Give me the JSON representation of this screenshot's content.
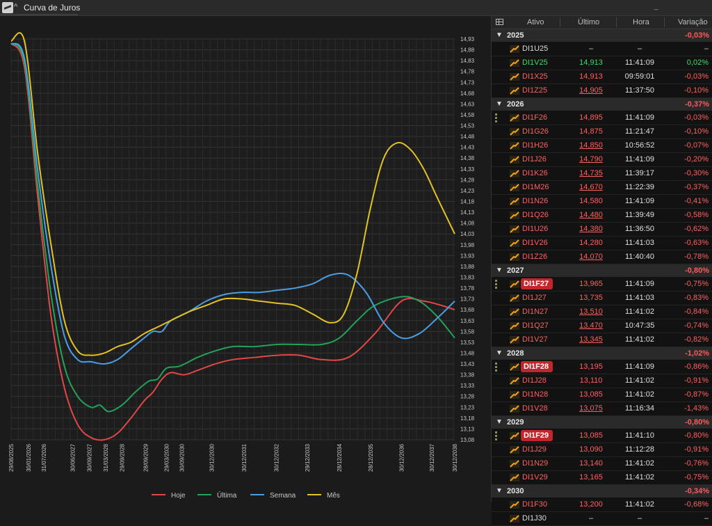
{
  "window": {
    "title": "Curva de Juros"
  },
  "table": {
    "headers": {
      "ativo": "Ativo",
      "ultimo": "Último",
      "hora": "Hora",
      "variacao": "Variação"
    },
    "groups": [
      {
        "name": "2025",
        "var": "-0,03%",
        "rows": [
          {
            "sym": "DI1U25",
            "last": "–",
            "hora": "–",
            "var": "–",
            "tone": "neutral"
          },
          {
            "sym": "DI1V25",
            "last": "14,913",
            "hora": "11:41:09",
            "var": "0,02%",
            "tone": "up"
          },
          {
            "sym": "DI1X25",
            "last": "14,913",
            "hora": "09:59:01",
            "var": "-0,03%",
            "tone": "down"
          },
          {
            "sym": "DI1Z25",
            "last": "14,905",
            "hora": "11:37:50",
            "var": "-0,10%",
            "tone": "down",
            "u": true
          }
        ]
      },
      {
        "name": "2026",
        "var": "-0,37%",
        "rows": [
          {
            "sym": "DI1F26",
            "last": "14,895",
            "hora": "11:41:09",
            "var": "-0,03%",
            "tone": "down",
            "drag": true
          },
          {
            "sym": "DI1G26",
            "last": "14,875",
            "hora": "11:21:47",
            "var": "-0,10%",
            "tone": "down"
          },
          {
            "sym": "DI1H26",
            "last": "14,850",
            "hora": "10:56:52",
            "var": "-0,07%",
            "tone": "down",
            "u": true
          },
          {
            "sym": "DI1J26",
            "last": "14,790",
            "hora": "11:41:09",
            "var": "-0,20%",
            "tone": "down",
            "u": true
          },
          {
            "sym": "DI1K26",
            "last": "14,735",
            "hora": "11:39:17",
            "var": "-0,30%",
            "tone": "down",
            "u": true
          },
          {
            "sym": "DI1M26",
            "last": "14,670",
            "hora": "11:22:39",
            "var": "-0,37%",
            "tone": "down",
            "u": true
          },
          {
            "sym": "DI1N26",
            "last": "14,580",
            "hora": "11:41:09",
            "var": "-0,41%",
            "tone": "down"
          },
          {
            "sym": "DI1Q26",
            "last": "14,480",
            "hora": "11:39:49",
            "var": "-0,58%",
            "tone": "down",
            "u": true
          },
          {
            "sym": "DI1U26",
            "last": "14,380",
            "hora": "11:36:50",
            "var": "-0,62%",
            "tone": "down",
            "u": true
          },
          {
            "sym": "DI1V26",
            "last": "14,280",
            "hora": "11:41:03",
            "var": "-0,63%",
            "tone": "down"
          },
          {
            "sym": "DI1Z26",
            "last": "14,070",
            "hora": "11:40:40",
            "var": "-0,78%",
            "tone": "down",
            "u": true
          }
        ]
      },
      {
        "name": "2027",
        "var": "-0,80%",
        "rows": [
          {
            "sym": "DI1F27",
            "last": "13,965",
            "hora": "11:41:09",
            "var": "-0,75%",
            "tone": "down",
            "badge": true,
            "drag": true
          },
          {
            "sym": "DI1J27",
            "last": "13,735",
            "hora": "11:41:03",
            "var": "-0,83%",
            "tone": "down"
          },
          {
            "sym": "DI1N27",
            "last": "13,510",
            "hora": "11:41:02",
            "var": "-0,84%",
            "tone": "down",
            "u": true
          },
          {
            "sym": "DI1Q27",
            "last": "13,470",
            "hora": "10:47:35",
            "var": "-0,74%",
            "tone": "down",
            "u": true
          },
          {
            "sym": "DI1V27",
            "last": "13,345",
            "hora": "11:41:02",
            "var": "-0,82%",
            "tone": "down",
            "u": true
          }
        ]
      },
      {
        "name": "2028",
        "var": "-1,02%",
        "rows": [
          {
            "sym": "DI1F28",
            "last": "13,195",
            "hora": "11:41:09",
            "var": "-0,86%",
            "tone": "down",
            "badge": true,
            "drag": true
          },
          {
            "sym": "DI1J28",
            "last": "13,110",
            "hora": "11:41:02",
            "var": "-0,91%",
            "tone": "down"
          },
          {
            "sym": "DI1N28",
            "last": "13,085",
            "hora": "11:41:02",
            "var": "-0,87%",
            "tone": "down"
          },
          {
            "sym": "DI1V28",
            "last": "13,075",
            "hora": "11:16:34",
            "var": "-1,43%",
            "tone": "down",
            "u": true
          }
        ]
      },
      {
        "name": "2029",
        "var": "-0,80%",
        "rows": [
          {
            "sym": "DI1F29",
            "last": "13,085",
            "hora": "11:41:10",
            "var": "-0,80%",
            "tone": "down",
            "badge": true,
            "drag": true
          },
          {
            "sym": "DI1J29",
            "last": "13,090",
            "hora": "11:12:28",
            "var": "-0,91%",
            "tone": "down"
          },
          {
            "sym": "DI1N29",
            "last": "13,140",
            "hora": "11:41:02",
            "var": "-0,76%",
            "tone": "down"
          },
          {
            "sym": "DI1V29",
            "last": "13,165",
            "hora": "11:41:02",
            "var": "-0,75%",
            "tone": "down"
          }
        ]
      },
      {
        "name": "2030",
        "var": "-0,34%",
        "rows": [
          {
            "sym": "DI1F30",
            "last": "13,200",
            "hora": "11:41:02",
            "var": "-0,68%",
            "tone": "down"
          },
          {
            "sym": "DI1J30",
            "last": "–",
            "hora": "–",
            "var": "–",
            "tone": "neutral"
          }
        ]
      }
    ]
  },
  "chart_data": {
    "type": "line",
    "ylim": [
      13.08,
      14.93
    ],
    "yticks": [
      "14,93",
      "14,88",
      "14,83",
      "14,78",
      "14,73",
      "14,68",
      "14,63",
      "14,58",
      "14,53",
      "14,48",
      "14,43",
      "14,38",
      "14,33",
      "14,28",
      "14,23",
      "14,18",
      "14,13",
      "14,08",
      "14,03",
      "13,98",
      "13,93",
      "13,88",
      "13,83",
      "13,78",
      "13,73",
      "13,68",
      "13,63",
      "13,58",
      "13,53",
      "13,48",
      "13,43",
      "13,38",
      "13,33",
      "13,28",
      "13,23",
      "13,18",
      "13,13",
      "13,08"
    ],
    "xticks": [
      "29/08/2025",
      "30/01/2026",
      "31/07/2026",
      "30/06/2027",
      "30/09/2027",
      "31/03/2028",
      "29/09/2028",
      "28/09/2029",
      "29/03/2030",
      "30/09/2030",
      "30/12/2030",
      "30/12/2031",
      "30/12/2032",
      "29/12/2033",
      "28/12/2034",
      "28/12/2035",
      "30/12/2036",
      "30/12/2037",
      "30/12/2038"
    ],
    "xtick_fracs": [
      0.0,
      0.039,
      0.074,
      0.139,
      0.176,
      0.213,
      0.25,
      0.303,
      0.35,
      0.385,
      0.452,
      0.525,
      0.598,
      0.668,
      0.74,
      0.81,
      0.88,
      0.948,
      1.0
    ],
    "series": [
      {
        "name": "Hoje",
        "color": "#e04848",
        "points": [
          [
            0,
            14.91
          ],
          [
            0.03,
            14.8
          ],
          [
            0.06,
            14.2
          ],
          [
            0.09,
            13.65
          ],
          [
            0.12,
            13.32
          ],
          [
            0.15,
            13.15
          ],
          [
            0.18,
            13.09
          ],
          [
            0.21,
            13.08
          ],
          [
            0.24,
            13.11
          ],
          [
            0.27,
            13.18
          ],
          [
            0.3,
            13.26
          ],
          [
            0.32,
            13.3
          ],
          [
            0.34,
            13.36
          ],
          [
            0.36,
            13.39
          ],
          [
            0.39,
            13.38
          ],
          [
            0.42,
            13.4
          ],
          [
            0.46,
            13.43
          ],
          [
            0.5,
            13.45
          ],
          [
            0.55,
            13.46
          ],
          [
            0.6,
            13.47
          ],
          [
            0.65,
            13.47
          ],
          [
            0.7,
            13.45
          ],
          [
            0.76,
            13.46
          ],
          [
            0.82,
            13.57
          ],
          [
            0.88,
            13.72
          ],
          [
            0.93,
            13.72
          ],
          [
            0.97,
            13.7
          ],
          [
            1.0,
            13.68
          ]
        ]
      },
      {
        "name": "Última",
        "color": "#23a25a",
        "points": [
          [
            0,
            14.91
          ],
          [
            0.03,
            14.82
          ],
          [
            0.06,
            14.25
          ],
          [
            0.09,
            13.75
          ],
          [
            0.12,
            13.42
          ],
          [
            0.15,
            13.28
          ],
          [
            0.18,
            13.23
          ],
          [
            0.2,
            13.24
          ],
          [
            0.22,
            13.21
          ],
          [
            0.25,
            13.24
          ],
          [
            0.28,
            13.3
          ],
          [
            0.31,
            13.35
          ],
          [
            0.33,
            13.36
          ],
          [
            0.35,
            13.41
          ],
          [
            0.38,
            13.42
          ],
          [
            0.42,
            13.46
          ],
          [
            0.46,
            13.49
          ],
          [
            0.5,
            13.51
          ],
          [
            0.55,
            13.51
          ],
          [
            0.6,
            13.52
          ],
          [
            0.65,
            13.52
          ],
          [
            0.7,
            13.52
          ],
          [
            0.74,
            13.55
          ],
          [
            0.78,
            13.63
          ],
          [
            0.82,
            13.7
          ],
          [
            0.88,
            13.74
          ],
          [
            0.92,
            13.72
          ],
          [
            0.96,
            13.65
          ],
          [
            1.0,
            13.55
          ]
        ]
      },
      {
        "name": "Semana",
        "color": "#4a9ee6",
        "points": [
          [
            0,
            14.91
          ],
          [
            0.03,
            14.84
          ],
          [
            0.06,
            14.32
          ],
          [
            0.09,
            13.88
          ],
          [
            0.12,
            13.56
          ],
          [
            0.15,
            13.45
          ],
          [
            0.18,
            13.44
          ],
          [
            0.21,
            13.43
          ],
          [
            0.24,
            13.45
          ],
          [
            0.27,
            13.5
          ],
          [
            0.3,
            13.55
          ],
          [
            0.32,
            13.58
          ],
          [
            0.34,
            13.58
          ],
          [
            0.36,
            13.63
          ],
          [
            0.4,
            13.67
          ],
          [
            0.44,
            13.72
          ],
          [
            0.48,
            13.75
          ],
          [
            0.52,
            13.76
          ],
          [
            0.56,
            13.76
          ],
          [
            0.6,
            13.77
          ],
          [
            0.64,
            13.78
          ],
          [
            0.68,
            13.8
          ],
          [
            0.72,
            13.84
          ],
          [
            0.76,
            13.84
          ],
          [
            0.8,
            13.76
          ],
          [
            0.84,
            13.62
          ],
          [
            0.88,
            13.55
          ],
          [
            0.92,
            13.57
          ],
          [
            0.96,
            13.64
          ],
          [
            1.0,
            13.72
          ]
        ]
      },
      {
        "name": "Mês",
        "color": "#e3c324",
        "points": [
          [
            0,
            14.92
          ],
          [
            0.03,
            14.92
          ],
          [
            0.06,
            14.4
          ],
          [
            0.09,
            13.98
          ],
          [
            0.12,
            13.63
          ],
          [
            0.15,
            13.49
          ],
          [
            0.18,
            13.47
          ],
          [
            0.21,
            13.48
          ],
          [
            0.24,
            13.51
          ],
          [
            0.27,
            13.53
          ],
          [
            0.3,
            13.57
          ],
          [
            0.33,
            13.6
          ],
          [
            0.36,
            13.63
          ],
          [
            0.4,
            13.67
          ],
          [
            0.44,
            13.7
          ],
          [
            0.48,
            13.73
          ],
          [
            0.52,
            13.73
          ],
          [
            0.56,
            13.72
          ],
          [
            0.6,
            13.71
          ],
          [
            0.64,
            13.7
          ],
          [
            0.68,
            13.66
          ],
          [
            0.72,
            13.62
          ],
          [
            0.75,
            13.66
          ],
          [
            0.78,
            13.85
          ],
          [
            0.81,
            14.15
          ],
          [
            0.84,
            14.38
          ],
          [
            0.87,
            14.45
          ],
          [
            0.9,
            14.42
          ],
          [
            0.93,
            14.33
          ],
          [
            0.96,
            14.2
          ],
          [
            1.0,
            14.03
          ]
        ]
      }
    ],
    "legend_position": "bottom-center",
    "grid": true
  }
}
